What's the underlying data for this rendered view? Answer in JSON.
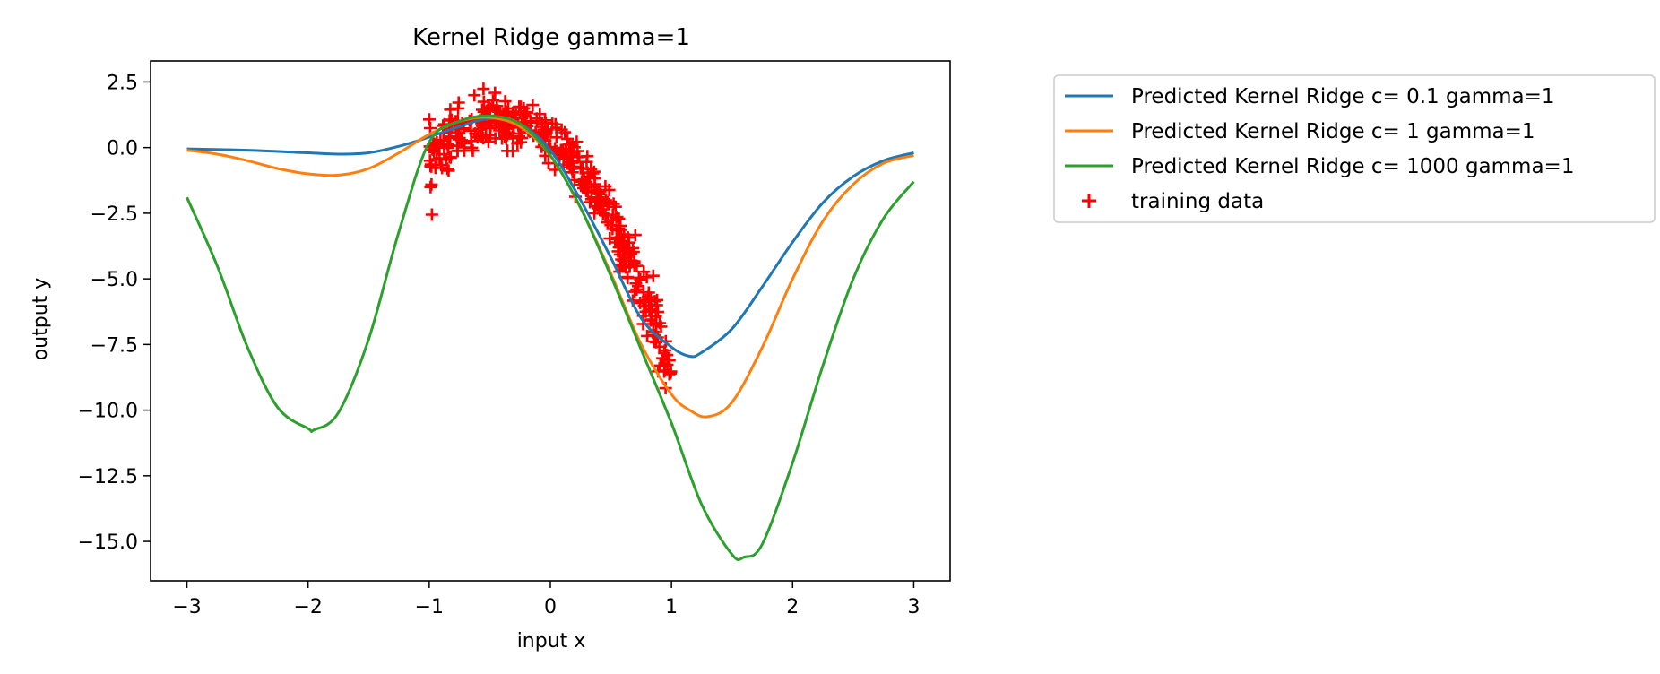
{
  "chart_data": {
    "type": "line",
    "title": "Kernel Ridge gamma=1",
    "xlabel": "input x",
    "ylabel": "output y",
    "xlim": [
      -3.3,
      3.3
    ],
    "ylim": [
      -16.5,
      3.3
    ],
    "xticks": [
      -3,
      -2,
      -1,
      0,
      1,
      2,
      3
    ],
    "xtick_labels": [
      "−3",
      "−2",
      "−1",
      "0",
      "1",
      "2",
      "3"
    ],
    "yticks": [
      2.5,
      0.0,
      -2.5,
      -5.0,
      -7.5,
      -10.0,
      -12.5,
      -15.0
    ],
    "ytick_labels": [
      "2.5",
      "0.0",
      "−2.5",
      "−5.0",
      "−7.5",
      "−10.0",
      "−12.5",
      "−15.0"
    ],
    "grid": false,
    "legend_position": "outside-top-right",
    "series": [
      {
        "name": "Predicted Kernel Ridge c= 0.1 gamma=1",
        "color": "#1f77b4",
        "x": [
          -3.0,
          -2.5,
          -2.0,
          -1.75,
          -1.5,
          -1.25,
          -1.0,
          -0.75,
          -0.5,
          -0.25,
          0.0,
          0.25,
          0.5,
          0.75,
          1.0,
          1.15,
          1.25,
          1.5,
          1.75,
          2.0,
          2.25,
          2.5,
          2.75,
          3.0
        ],
        "y": [
          -0.05,
          -0.1,
          -0.2,
          -0.25,
          -0.2,
          0.05,
          0.4,
          0.8,
          1.1,
          0.9,
          -0.1,
          -2.0,
          -4.2,
          -6.5,
          -7.6,
          -7.95,
          -7.8,
          -6.9,
          -5.3,
          -3.6,
          -2.1,
          -1.1,
          -0.5,
          -0.2
        ]
      },
      {
        "name": "Predicted Kernel Ridge c= 1 gamma=1",
        "color": "#ff7f0e",
        "x": [
          -3.0,
          -2.75,
          -2.5,
          -2.25,
          -2.0,
          -1.75,
          -1.5,
          -1.25,
          -1.0,
          -0.75,
          -0.5,
          -0.25,
          0.0,
          0.25,
          0.5,
          0.75,
          1.0,
          1.15,
          1.3,
          1.5,
          1.75,
          2.0,
          2.25,
          2.5,
          2.75,
          3.0
        ],
        "y": [
          -0.1,
          -0.25,
          -0.5,
          -0.8,
          -1.0,
          -1.05,
          -0.8,
          -0.2,
          0.5,
          1.0,
          1.15,
          0.8,
          -0.3,
          -2.3,
          -4.8,
          -7.5,
          -9.4,
          -10.0,
          -10.25,
          -9.7,
          -7.6,
          -5.0,
          -2.8,
          -1.4,
          -0.6,
          -0.3
        ]
      },
      {
        "name": "Predicted Kernel Ridge c= 1000 gamma=1",
        "color": "#2ca02c",
        "x": [
          -3.0,
          -2.75,
          -2.5,
          -2.25,
          -2.0,
          -1.95,
          -1.75,
          -1.5,
          -1.25,
          -1.0,
          -0.75,
          -0.5,
          -0.25,
          0.0,
          0.25,
          0.5,
          0.75,
          1.0,
          1.25,
          1.5,
          1.6,
          1.75,
          2.0,
          2.25,
          2.5,
          2.75,
          3.0
        ],
        "y": [
          -1.9,
          -4.5,
          -7.6,
          -9.9,
          -10.7,
          -10.75,
          -10.1,
          -7.3,
          -3.2,
          0.2,
          1.0,
          1.2,
          0.9,
          -0.3,
          -2.3,
          -4.9,
          -7.7,
          -10.5,
          -13.6,
          -15.5,
          -15.6,
          -15.1,
          -12.0,
          -8.3,
          -5.0,
          -2.7,
          -1.3
        ]
      }
    ],
    "scatter": {
      "name": "training data",
      "color": "#ff0000",
      "marker": "+",
      "x_range": [
        -1.0,
        1.0
      ],
      "trend": "y ≈ quadratic hump peaking near x=-0.4 at ~1.0, falling to ~-10 at x=1.0",
      "noise": 0.55,
      "n_points": 420
    }
  }
}
